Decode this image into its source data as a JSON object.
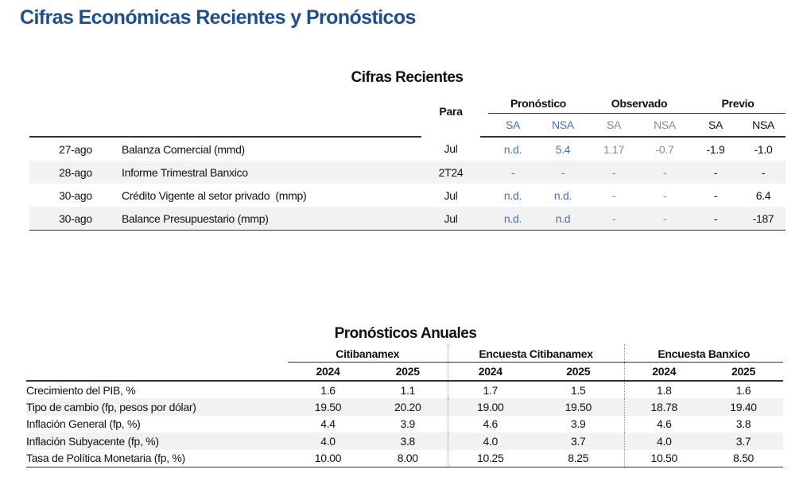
{
  "title": "Cifras Económicas Recientes y Pronósticos",
  "recientes": {
    "heading": "Cifras Recientes",
    "para_label": "Para",
    "groups": [
      "Pronóstico",
      "Observado",
      "Previo"
    ],
    "subheaders": [
      "SA",
      "NSA",
      "SA",
      "NSA",
      "SA",
      "NSA"
    ],
    "rows": [
      {
        "fecha": "27-ago",
        "indicador": "Balanza Comercial (mmd)",
        "para": "Jul",
        "valores": [
          "n.d.",
          "5.4",
          "1.17",
          "-0.7",
          "-1.9",
          "-1.0"
        ]
      },
      {
        "fecha": "28-ago",
        "indicador": "Informe Trimestral Banxico",
        "para": "2T24",
        "valores": [
          "-",
          "-",
          "-",
          "-",
          "-",
          "-"
        ]
      },
      {
        "fecha": "30-ago",
        "indicador": "Crédito Vigente al setor privado  (mmp)",
        "para": "Jul",
        "valores": [
          "n.d.",
          "n.d.",
          "-",
          "-",
          "-",
          "6.4"
        ]
      },
      {
        "fecha": "30-ago",
        "indicador": "Balance Presupuestario (mmp)",
        "para": "Jul",
        "valores": [
          "n.d.",
          "n.d",
          "-",
          "-",
          "-",
          "-187"
        ]
      }
    ],
    "colors": {
      "pronostico": "#4a6fb5",
      "observado": "#8a8a8a",
      "previo": "#111111"
    }
  },
  "anuales": {
    "heading": "Pronósticos Anuales",
    "groups": [
      "Citibanamex",
      "Encuesta Citibanamex",
      "Encuesta Banxico"
    ],
    "years": [
      "2024",
      "2025",
      "2024",
      "2025",
      "2024",
      "2025"
    ],
    "rows": [
      {
        "label": "Crecimiento del PIB, %",
        "valores": [
          "1.6",
          "1.1",
          "1.7",
          "1.5",
          "1.8",
          "1.6"
        ]
      },
      {
        "label": "Tipo de cambio (fp, pesos por dólar)",
        "valores": [
          "19.50",
          "20.20",
          "19.00",
          "19.50",
          "18.78",
          "19.40"
        ]
      },
      {
        "label": "Inflación General (fp, %)",
        "valores": [
          "4.4",
          "3.9",
          "4.6",
          "3.9",
          "4.6",
          "3.8"
        ]
      },
      {
        "label": "Inflación Subyacente (fp, %)",
        "valores": [
          "4.0",
          "3.8",
          "4.0",
          "3.7",
          "4.0",
          "3.7"
        ]
      },
      {
        "label": "Tasa de Política Monetaria (fp, %)",
        "valores": [
          "10.00",
          "8.00",
          "10.25",
          "8.25",
          "10.50",
          "8.50"
        ]
      }
    ]
  },
  "title_color": "#1f4e8c"
}
